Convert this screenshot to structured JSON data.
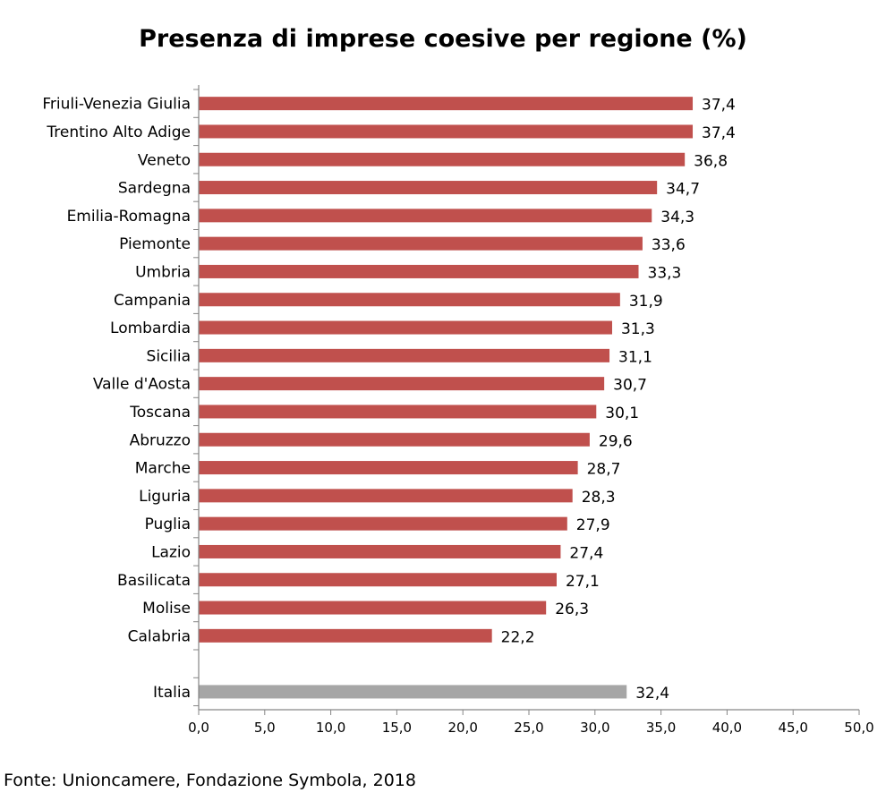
{
  "chart_data": {
    "type": "bar",
    "orientation": "horizontal",
    "title": "Presenza di imprese coesive per regione (%)",
    "categories": [
      "Friuli-Venezia Giulia",
      "Trentino Alto Adige",
      "Veneto",
      "Sardegna",
      "Emilia-Romagna",
      "Piemonte",
      "Umbria",
      "Campania",
      "Lombardia",
      "Sicilia",
      "Valle d'Aosta",
      "Toscana",
      "Abruzzo",
      "Marche",
      "Liguria",
      "Puglia",
      "Lazio",
      "Basilicata",
      "Molise",
      "Calabria"
    ],
    "values": [
      37.4,
      37.4,
      36.8,
      34.7,
      34.3,
      33.6,
      33.3,
      31.9,
      31.3,
      31.1,
      30.7,
      30.1,
      29.6,
      28.7,
      28.3,
      27.9,
      27.4,
      27.1,
      26.3,
      22.2
    ],
    "value_labels": [
      "37,4",
      "37,4",
      "36,8",
      "34,7",
      "34,3",
      "33,6",
      "33,3",
      "31,9",
      "31,3",
      "31,1",
      "30,7",
      "30,1",
      "29,6",
      "28,7",
      "28,3",
      "27,9",
      "27,4",
      "27,1",
      "26,3",
      "22,2"
    ],
    "reference": {
      "category": "Italia",
      "value": 32.4,
      "label": "32,4"
    },
    "xlim": [
      0,
      50
    ],
    "xticks": [
      0,
      5,
      10,
      15,
      20,
      25,
      30,
      35,
      40,
      45,
      50
    ],
    "xtick_labels": [
      "0,0",
      "5,0",
      "10,0",
      "15,0",
      "20,0",
      "25,0",
      "30,0",
      "35,0",
      "40,0",
      "45,0",
      "50,0"
    ],
    "grid": false,
    "legend": "none",
    "colors": {
      "regions": "#c0504d",
      "reference": "#a6a6a6",
      "axis": "#868686"
    }
  },
  "source": "Fonte: Unioncamere, Fondazione Symbola, 2018"
}
